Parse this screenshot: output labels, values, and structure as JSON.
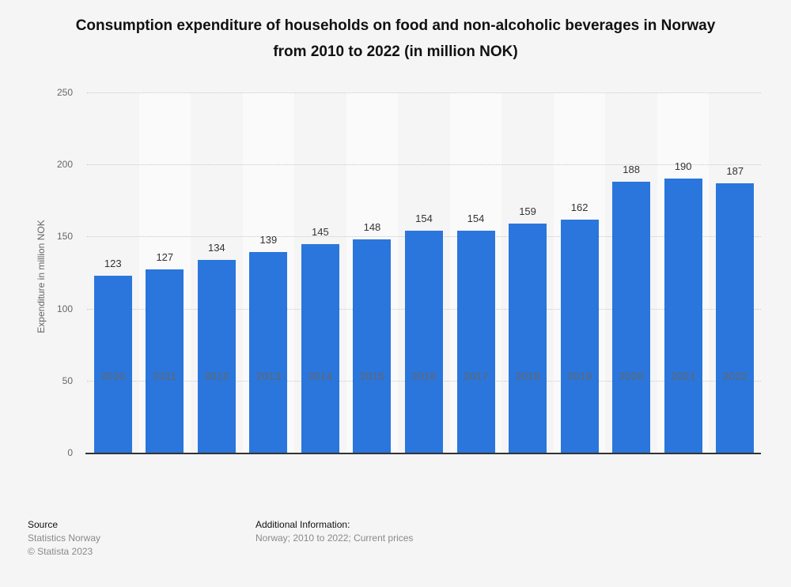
{
  "title": "Consumption expenditure of households on food and non-alcoholic beverages in Norway from 2010 to 2022 (in million NOK)",
  "chart_data": {
    "type": "bar",
    "categories": [
      "2010",
      "2011",
      "2012",
      "2013",
      "2014",
      "2015",
      "2016",
      "2017",
      "2018",
      "2019",
      "2020",
      "2021",
      "2022"
    ],
    "values": [
      123,
      127,
      134,
      139,
      145,
      148,
      154,
      154,
      159,
      162,
      188,
      190,
      187
    ],
    "title": "Consumption expenditure of households on food and non-alcoholic beverages in Norway from 2010 to 2022 (in million NOK)",
    "xlabel": "",
    "ylabel": "Expenditure in million NOK",
    "ylim": [
      0,
      250
    ],
    "yticks": [
      0,
      50,
      100,
      150,
      200,
      250
    ],
    "grid": "horizontal dotted",
    "legend": "none",
    "value_labels": true,
    "bar_color": "#2a76dc"
  },
  "colors": {
    "bar": "#2a76dc",
    "background": "#f5f5f5",
    "column_stripe": "#fafafa",
    "gridline": "#c9c9c9",
    "axis_line": "#333333",
    "muted_text": "#666666",
    "dark_text": "#111111"
  },
  "footer": {
    "source_label": "Source",
    "source_name": "Statistics Norway",
    "copyright": "© Statista 2023",
    "additional_info_label": "Additional Information:",
    "additional_info": "Norway; 2010 to 2022; Current prices"
  }
}
